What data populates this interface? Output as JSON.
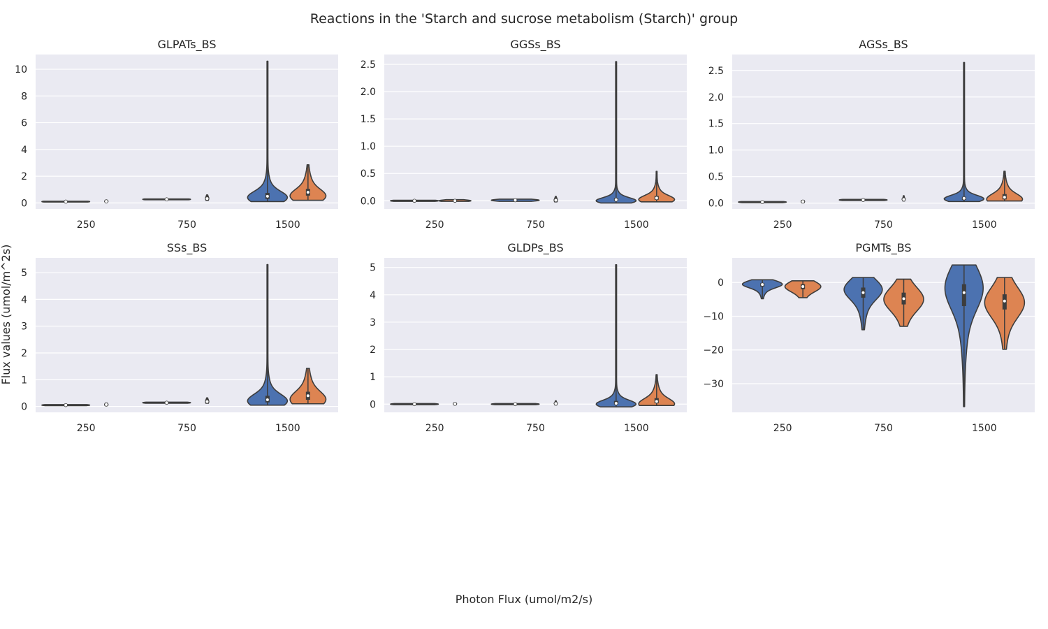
{
  "figure": {
    "suptitle": "Reactions in the 'Starch and sucrose metabolism (Starch)' group",
    "xlabel": "Photon Flux (umol/m2/s)",
    "ylabel": "Flux values (umol/m^2s)"
  },
  "colors": {
    "background": "#eaeaf2",
    "grid": "#ffffff",
    "series_blue": "#4c72b0",
    "series_orange": "#dd8452",
    "outline": "#3d3d3d",
    "text": "#262626"
  },
  "chart_data": [
    {
      "type": "violin",
      "title": "GLPATs_BS",
      "categories": [
        "250",
        "750",
        "1500"
      ],
      "ylim": [
        -0.45,
        11.1
      ],
      "yticks": [
        0,
        2,
        4,
        6,
        8,
        10
      ],
      "ytick_labels": [
        "0",
        "2",
        "4",
        "6",
        "8",
        "10"
      ],
      "grid": true,
      "series": [
        {
          "color": "blue",
          "groups": [
            {
              "min": 0.07,
              "q1": 0.09,
              "median": 0.1,
              "q3": 0.11,
              "max": 0.13,
              "mode": 0.1,
              "spread": 0.6
            },
            {
              "min": 0.24,
              "q1": 0.26,
              "median": 0.27,
              "q3": 0.28,
              "max": 0.3,
              "mode": 0.27,
              "spread": 0.6
            },
            {
              "min": 0.1,
              "q1": 0.3,
              "median": 0.5,
              "q3": 0.75,
              "max": 10.6,
              "mode": 0.4,
              "spread": 0.5
            }
          ]
        },
        {
          "color": "orange",
          "groups": [
            {
              "min": 0.07,
              "q1": 0.1,
              "median": 0.12,
              "q3": 0.15,
              "max": 0.2,
              "mode": 0.12,
              "spread": 0.04
            },
            {
              "min": 0.2,
              "q1": 0.28,
              "median": 0.33,
              "q3": 0.42,
              "max": 0.6,
              "mode": 0.33,
              "spread": 0.04
            },
            {
              "min": 0.2,
              "q1": 0.55,
              "median": 0.8,
              "q3": 1.05,
              "max": 2.85,
              "mode": 0.5,
              "spread": 0.45
            }
          ]
        }
      ]
    },
    {
      "type": "violin",
      "title": "GGSs_BS",
      "categories": [
        "250",
        "750",
        "1500"
      ],
      "ylim": [
        -0.15,
        2.68
      ],
      "yticks": [
        0,
        0.5,
        1.0,
        1.5,
        2.0,
        2.5
      ],
      "ytick_labels": [
        "0.0",
        "0.5",
        "1.0",
        "1.5",
        "2.0",
        "2.5"
      ],
      "grid": true,
      "series": [
        {
          "color": "blue",
          "groups": [
            {
              "min": -0.01,
              "q1": -0.005,
              "median": 0.0,
              "q3": 0.005,
              "max": 0.01,
              "mode": 0.0,
              "spread": 0.6
            },
            {
              "min": -0.01,
              "q1": 0.0,
              "median": 0.01,
              "q3": 0.015,
              "max": 0.03,
              "mode": 0.01,
              "spread": 0.6
            },
            {
              "min": -0.04,
              "q1": 0.0,
              "median": 0.02,
              "q3": 0.05,
              "max": 2.55,
              "mode": 0.0,
              "spread": 0.5
            }
          ]
        },
        {
          "color": "orange",
          "groups": [
            {
              "min": -0.01,
              "q1": 0.0,
              "median": 0.0,
              "q3": 0.01,
              "max": 0.02,
              "mode": 0.0,
              "spread": 0.4
            },
            {
              "min": -0.02,
              "q1": 0.0,
              "median": 0.01,
              "q3": 0.03,
              "max": 0.08,
              "mode": 0.01,
              "spread": 0.04
            },
            {
              "min": -0.02,
              "q1": 0.02,
              "median": 0.05,
              "q3": 0.09,
              "max": 0.54,
              "mode": 0.02,
              "spread": 0.45
            }
          ]
        }
      ]
    },
    {
      "type": "violin",
      "title": "AGSs_BS",
      "categories": [
        "250",
        "750",
        "1500"
      ],
      "ylim": [
        -0.11,
        2.8
      ],
      "yticks": [
        0,
        0.5,
        1.0,
        1.5,
        2.0,
        2.5
      ],
      "ytick_labels": [
        "0.0",
        "0.5",
        "1.0",
        "1.5",
        "2.0",
        "2.5"
      ],
      "grid": true,
      "series": [
        {
          "color": "blue",
          "groups": [
            {
              "min": 0.01,
              "q1": 0.015,
              "median": 0.02,
              "q3": 0.025,
              "max": 0.03,
              "mode": 0.02,
              "spread": 0.6
            },
            {
              "min": 0.05,
              "q1": 0.055,
              "median": 0.06,
              "q3": 0.065,
              "max": 0.07,
              "mode": 0.06,
              "spread": 0.6
            },
            {
              "min": 0.03,
              "q1": 0.06,
              "median": 0.09,
              "q3": 0.12,
              "max": 2.65,
              "mode": 0.08,
              "spread": 0.5
            }
          ]
        },
        {
          "color": "orange",
          "groups": [
            {
              "min": 0.01,
              "q1": 0.02,
              "median": 0.03,
              "q3": 0.04,
              "max": 0.05,
              "mode": 0.03,
              "spread": 0.04
            },
            {
              "min": 0.04,
              "q1": 0.06,
              "median": 0.07,
              "q3": 0.09,
              "max": 0.14,
              "mode": 0.07,
              "spread": 0.03
            },
            {
              "min": 0.04,
              "q1": 0.07,
              "median": 0.11,
              "q3": 0.17,
              "max": 0.6,
              "mode": 0.07,
              "spread": 0.45
            }
          ]
        }
      ]
    },
    {
      "type": "violin",
      "title": "SSs_BS",
      "categories": [
        "250",
        "750",
        "1500"
      ],
      "ylim": [
        -0.22,
        5.55
      ],
      "yticks": [
        0,
        1,
        2,
        3,
        4,
        5
      ],
      "ytick_labels": [
        "0",
        "1",
        "2",
        "3",
        "4",
        "5"
      ],
      "grid": true,
      "series": [
        {
          "color": "blue",
          "groups": [
            {
              "min": 0.03,
              "q1": 0.04,
              "median": 0.05,
              "q3": 0.06,
              "max": 0.07,
              "mode": 0.05,
              "spread": 0.6
            },
            {
              "min": 0.12,
              "q1": 0.13,
              "median": 0.14,
              "q3": 0.15,
              "max": 0.16,
              "mode": 0.14,
              "spread": 0.6
            },
            {
              "min": 0.05,
              "q1": 0.15,
              "median": 0.25,
              "q3": 0.4,
              "max": 5.3,
              "mode": 0.2,
              "spread": 0.5
            }
          ]
        },
        {
          "color": "orange",
          "groups": [
            {
              "min": 0.03,
              "q1": 0.05,
              "median": 0.07,
              "q3": 0.09,
              "max": 0.12,
              "mode": 0.07,
              "spread": 0.04
            },
            {
              "min": 0.12,
              "q1": 0.15,
              "median": 0.18,
              "q3": 0.22,
              "max": 0.32,
              "mode": 0.18,
              "spread": 0.04
            },
            {
              "min": 0.1,
              "q1": 0.25,
              "median": 0.4,
              "q3": 0.55,
              "max": 1.42,
              "mode": 0.25,
              "spread": 0.45
            }
          ]
        }
      ]
    },
    {
      "type": "violin",
      "title": "GLDPs_BS",
      "categories": [
        "250",
        "750",
        "1500"
      ],
      "ylim": [
        -0.3,
        5.35
      ],
      "yticks": [
        0,
        1,
        2,
        3,
        4,
        5
      ],
      "ytick_labels": [
        "0",
        "1",
        "2",
        "3",
        "4",
        "5"
      ],
      "grid": true,
      "series": [
        {
          "color": "blue",
          "groups": [
            {
              "min": -0.02,
              "q1": -0.01,
              "median": 0.0,
              "q3": 0.01,
              "max": 0.02,
              "mode": 0.0,
              "spread": 0.6
            },
            {
              "min": -0.02,
              "q1": -0.01,
              "median": 0.0,
              "q3": 0.01,
              "max": 0.02,
              "mode": 0.0,
              "spread": 0.6
            },
            {
              "min": -0.1,
              "q1": -0.01,
              "median": 0.03,
              "q3": 0.12,
              "max": 5.1,
              "mode": 0.0,
              "spread": 0.5
            }
          ]
        },
        {
          "color": "orange",
          "groups": [
            {
              "min": -0.02,
              "q1": 0.0,
              "median": 0.01,
              "q3": 0.02,
              "max": 0.05,
              "mode": 0.01,
              "spread": 0.04
            },
            {
              "min": -0.03,
              "q1": 0.0,
              "median": 0.02,
              "q3": 0.05,
              "max": 0.12,
              "mode": 0.02,
              "spread": 0.03
            },
            {
              "min": -0.05,
              "q1": 0.03,
              "median": 0.1,
              "q3": 0.22,
              "max": 1.08,
              "mode": 0.0,
              "spread": 0.45
            }
          ]
        }
      ]
    },
    {
      "type": "violin",
      "title": "PGMTs_BS",
      "categories": [
        "250",
        "750",
        "1500"
      ],
      "ylim": [
        -38.5,
        7.3
      ],
      "yticks": [
        0,
        -10,
        -20,
        -30
      ],
      "ytick_labels": [
        "0",
        "−10",
        "−20",
        "−30"
      ],
      "grid": true,
      "series": [
        {
          "color": "blue",
          "groups": [
            {
              "min": -4.8,
              "q1": -1.2,
              "median": -0.6,
              "q3": -0.2,
              "max": 0.8,
              "mode": -0.5,
              "spread": 0.5
            },
            {
              "min": -14.0,
              "q1": -4.5,
              "median": -3.0,
              "q3": -1.5,
              "max": 1.5,
              "mode": -2.0,
              "spread": 0.48
            },
            {
              "min": -36.8,
              "q1": -7.0,
              "median": -3.0,
              "q3": -0.5,
              "max": 5.2,
              "mode": -1.5,
              "spread": 0.48
            }
          ]
        },
        {
          "color": "orange",
          "groups": [
            {
              "min": -4.5,
              "q1": -2.0,
              "median": -1.2,
              "q3": -0.5,
              "max": 0.5,
              "mode": -1.2,
              "spread": 0.45
            },
            {
              "min": -13.0,
              "q1": -6.5,
              "median": -4.8,
              "q3": -3.0,
              "max": 1.0,
              "mode": -5.0,
              "spread": 0.5
            },
            {
              "min": -19.8,
              "q1": -8.0,
              "median": -5.5,
              "q3": -3.5,
              "max": 1.5,
              "mode": -6.0,
              "spread": 0.5
            }
          ]
        }
      ]
    }
  ]
}
